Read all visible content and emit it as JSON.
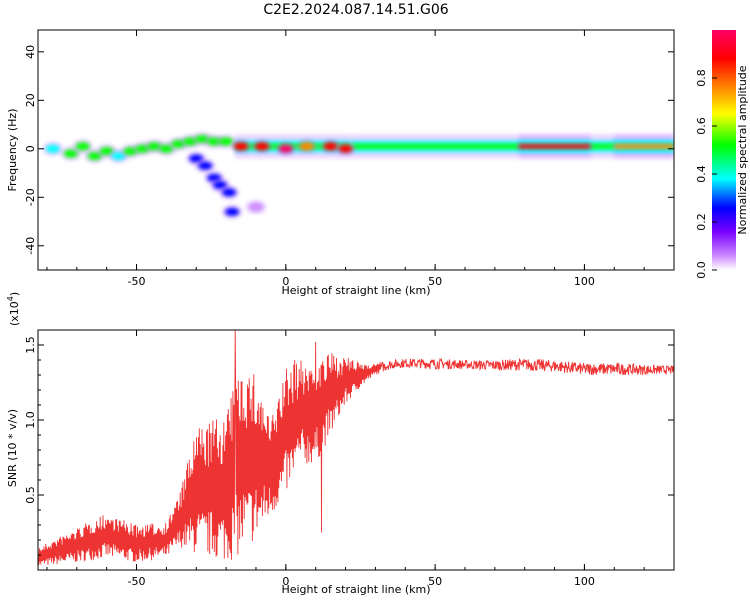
{
  "title": "C2E2.2024.087.14.51.G06",
  "chart_data": [
    {
      "type": "heatmap",
      "xlabel": "Height of straight line (km)",
      "ylabel": "Frequency (Hz)",
      "xlim": [
        -83,
        130
      ],
      "ylim": [
        -50,
        49
      ],
      "xticks": [
        -50,
        0,
        50,
        100
      ],
      "xtick_labels": [
        "-50",
        "0",
        "50",
        "100"
      ],
      "yticks": [
        40,
        20,
        0,
        -20,
        -40
      ],
      "ytick_labels": [
        "40",
        "20",
        "0",
        "-20",
        "-40"
      ],
      "colorbar": {
        "label": "Normalized spectral amplitude",
        "range": [
          0,
          1
        ],
        "ticks": [
          0.0,
          0.2,
          0.4,
          0.6,
          0.8
        ],
        "tick_labels": [
          "0.0",
          "0.2",
          "0.4",
          "0.6",
          "0.8"
        ],
        "colors": [
          "#ffffff",
          "#cc88ff",
          "#7700ff",
          "#0000ff",
          "#00ffff",
          "#00ff00",
          "#ffff00",
          "#ff8800",
          "#ff0000",
          "#ff0066"
        ]
      },
      "blobs": [
        {
          "x": -78,
          "y": 0,
          "v": 0.45
        },
        {
          "x": -72,
          "y": -2,
          "v": 0.5
        },
        {
          "x": -68,
          "y": 1,
          "v": 0.55
        },
        {
          "x": -64,
          "y": -3,
          "v": 0.5
        },
        {
          "x": -60,
          "y": -1,
          "v": 0.55
        },
        {
          "x": -56,
          "y": -3,
          "v": 0.45
        },
        {
          "x": -52,
          "y": -1,
          "v": 0.5
        },
        {
          "x": -48,
          "y": 0,
          "v": 0.55
        },
        {
          "x": -44,
          "y": 1,
          "v": 0.5
        },
        {
          "x": -40,
          "y": 0,
          "v": 0.55
        },
        {
          "x": -36,
          "y": 2,
          "v": 0.5
        },
        {
          "x": -32,
          "y": 3,
          "v": 0.55
        },
        {
          "x": -28,
          "y": 4,
          "v": 0.5
        },
        {
          "x": -24,
          "y": 3,
          "v": 0.55
        },
        {
          "x": -20,
          "y": 3,
          "v": 0.5
        },
        {
          "x": -30,
          "y": -4,
          "v": 0.3
        },
        {
          "x": -27,
          "y": -7,
          "v": 0.3
        },
        {
          "x": -24,
          "y": -12,
          "v": 0.3
        },
        {
          "x": -22,
          "y": -15,
          "v": 0.3
        },
        {
          "x": -19,
          "y": -18,
          "v": 0.3
        },
        {
          "x": -18,
          "y": -26,
          "v": 0.3
        },
        {
          "x": -10,
          "y": -24,
          "v": 0.15
        },
        {
          "x": -15,
          "y": 1,
          "v": 0.9
        },
        {
          "x": -8,
          "y": 1,
          "v": 0.85
        },
        {
          "x": 0,
          "y": 0,
          "v": 0.95
        },
        {
          "x": 7,
          "y": 1,
          "v": 0.8
        },
        {
          "x": 15,
          "y": 1,
          "v": 0.85
        },
        {
          "x": 20,
          "y": 0,
          "v": 0.9
        }
      ],
      "band": [
        {
          "x0": -17,
          "x1": 22,
          "y": 1,
          "v": 0.55
        },
        {
          "x0": 22,
          "x1": 130,
          "y": 1,
          "v": 0.6
        },
        {
          "x0": 78,
          "x1": 102,
          "y": 1,
          "v": 0.9
        },
        {
          "x0": 110,
          "x1": 130,
          "y": 1,
          "v": 0.75
        }
      ]
    },
    {
      "type": "line",
      "xlabel": "Height of straight line (km)",
      "ylabel": "SNR (10 * v/v)",
      "yscale_label_base": "(x10",
      "yscale_label_exp": "4",
      "yscale_label_end": ")",
      "xlim": [
        -83,
        130
      ],
      "ylim": [
        0.0,
        1.6
      ],
      "xticks": [
        -50,
        0,
        50,
        100
      ],
      "xtick_labels": [
        "-50",
        "0",
        "50",
        "100"
      ],
      "yticks": [
        0.5,
        1.0,
        1.5
      ],
      "ytick_labels": [
        "0.5",
        "1.0",
        "1.5"
      ],
      "color": "#ee3333",
      "envelope": {
        "x": [
          -83,
          -70,
          -60,
          -50,
          -40,
          -35,
          -30,
          -25,
          -20,
          -15,
          -10,
          -5,
          0,
          5,
          10,
          15,
          20,
          25,
          30,
          35,
          40,
          50,
          60,
          70,
          80,
          90,
          100,
          110,
          120,
          130
        ],
        "low": [
          0.02,
          0.05,
          0.08,
          0.05,
          0.08,
          0.15,
          0.1,
          0.08,
          0.05,
          0.1,
          0.2,
          0.35,
          0.5,
          0.7,
          0.7,
          0.9,
          1.1,
          1.22,
          1.3,
          1.34,
          1.35,
          1.34,
          1.34,
          1.33,
          1.33,
          1.32,
          1.3,
          1.3,
          1.3,
          1.31
        ],
        "high": [
          0.15,
          0.28,
          0.38,
          0.3,
          0.32,
          0.55,
          0.95,
          1.0,
          1.05,
          1.4,
          1.3,
          1.0,
          1.35,
          1.4,
          1.4,
          1.45,
          1.42,
          1.38,
          1.38,
          1.4,
          1.41,
          1.41,
          1.4,
          1.4,
          1.41,
          1.4,
          1.38,
          1.38,
          1.37,
          1.36
        ]
      },
      "spikes": [
        {
          "x": -17,
          "y": 1.6
        },
        {
          "x": 10,
          "y": 1.52
        },
        {
          "x": 12,
          "y": 0.25
        },
        {
          "x": 3,
          "y": 1.4
        }
      ]
    }
  ]
}
